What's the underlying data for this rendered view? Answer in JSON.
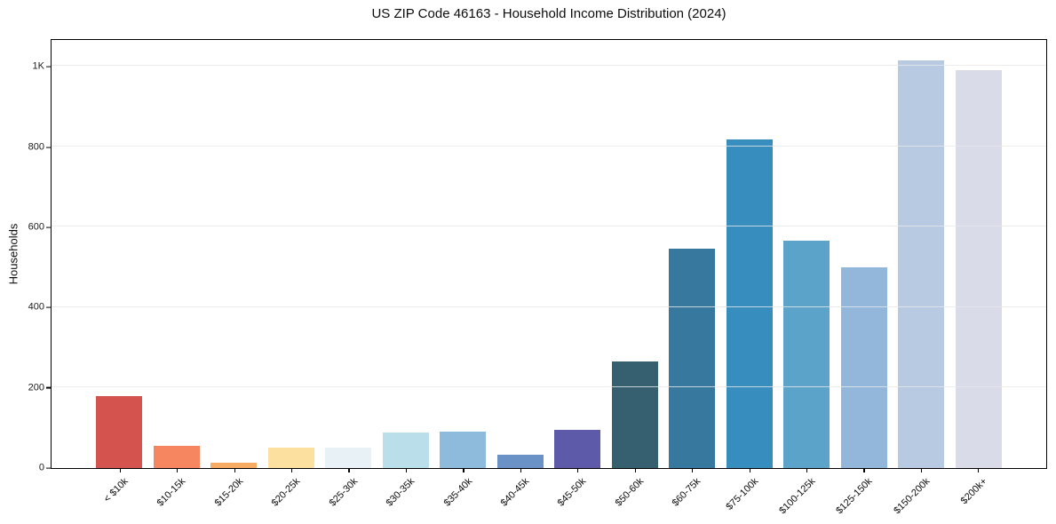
{
  "chart_data": {
    "type": "bar",
    "title": "US ZIP Code 46163 - Household Income Distribution (2024)",
    "xlabel": "",
    "ylabel": "Households",
    "categories": [
      "< $10k",
      "$10-15k",
      "$15-20k",
      "$20-25k",
      "$25-30k",
      "$30-35k",
      "$35-40k",
      "$40-45k",
      "$45-50k",
      "$50-60k",
      "$60-75k",
      "$75-100k",
      "$100-125k",
      "$125-150k",
      "$150-200k",
      "$200k+"
    ],
    "values": [
      180,
      55,
      13,
      50,
      50,
      88,
      90,
      33,
      96,
      265,
      545,
      818,
      565,
      500,
      1015,
      990
    ],
    "bar_colors": [
      "#d5534e",
      "#f58660",
      "#f6ac62",
      "#fce0a0",
      "#e7f1f6",
      "#bbdeeb",
      "#8ebbdc",
      "#6b92c7",
      "#5d5ba9",
      "#365f70",
      "#37799e",
      "#388dbf",
      "#5ba3c9",
      "#93b7db",
      "#b8c9e2",
      "#d9dbe9"
    ],
    "ylim": [
      0,
      1065
    ],
    "yticks": [
      {
        "v": 0,
        "label": "0"
      },
      {
        "v": 200,
        "label": "200"
      },
      {
        "v": 400,
        "label": "400"
      },
      {
        "v": 600,
        "label": "600"
      },
      {
        "v": 800,
        "label": "800"
      },
      {
        "v": 1000,
        "label": "1K"
      }
    ],
    "grid": true,
    "legend_position": "none"
  },
  "style": {
    "background": "#ffffff",
    "spine_color": "#000000",
    "grid_color_rgba": "rgba(233,233,233,0.8)",
    "text_color": "#0d0d0d"
  }
}
